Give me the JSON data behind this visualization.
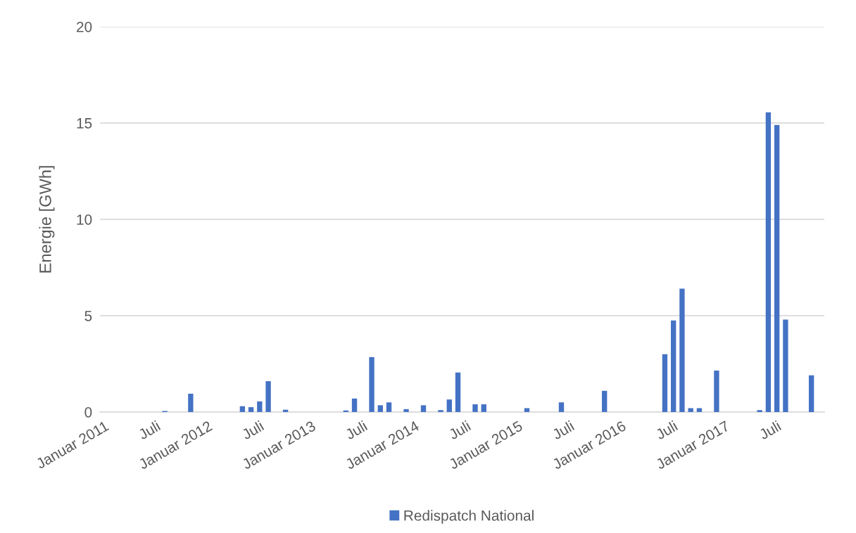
{
  "chart_data": {
    "type": "bar",
    "ylabel": "Energie [GWh]",
    "categories": [
      "Januar 2011",
      null,
      null,
      null,
      null,
      null,
      "Juli",
      null,
      null,
      null,
      null,
      null,
      "Januar 2012",
      null,
      null,
      null,
      null,
      null,
      "Juli",
      null,
      null,
      null,
      null,
      null,
      "Januar 2013",
      null,
      null,
      null,
      null,
      null,
      "Juli",
      null,
      null,
      null,
      null,
      null,
      "Januar 2014",
      null,
      null,
      null,
      null,
      null,
      "Juli",
      null,
      null,
      null,
      null,
      null,
      "Januar 2015",
      null,
      null,
      null,
      null,
      null,
      "Juli",
      null,
      null,
      null,
      null,
      null,
      "Januar 2016",
      null,
      null,
      null,
      null,
      null,
      "Juli",
      null,
      null,
      null,
      null,
      null,
      "Januar 2017",
      null,
      null,
      null,
      null,
      null,
      "Juli",
      null,
      null,
      null,
      null,
      null
    ],
    "series": [
      {
        "name": "Redispatch National",
        "color": "#4472c4",
        "values": [
          0,
          0,
          0,
          0,
          0,
          0,
          0,
          0.05,
          0,
          0,
          0.95,
          0,
          0,
          0,
          0,
          0,
          0.3,
          0.25,
          0.55,
          1.6,
          0,
          0.12,
          0,
          0,
          0,
          0,
          0,
          0,
          0.08,
          0.7,
          0,
          2.85,
          0.35,
          0.5,
          0,
          0.15,
          0,
          0.35,
          0,
          0.1,
          0.65,
          2.05,
          0,
          0.4,
          0.4,
          0,
          0,
          0,
          0,
          0.2,
          0,
          0,
          0,
          0.5,
          0,
          0,
          0,
          0,
          1.1,
          0,
          0,
          0,
          0,
          0,
          0,
          3.0,
          4.75,
          6.4,
          0.2,
          0.2,
          0,
          2.15,
          0,
          0,
          0,
          0,
          0.1,
          15.55,
          14.9,
          4.8,
          0,
          0,
          1.9,
          0
        ]
      }
    ],
    "ylim": [
      0,
      20
    ],
    "yticks": [
      0,
      5,
      10,
      15,
      20
    ],
    "grid": "y",
    "legend": "bottom"
  }
}
